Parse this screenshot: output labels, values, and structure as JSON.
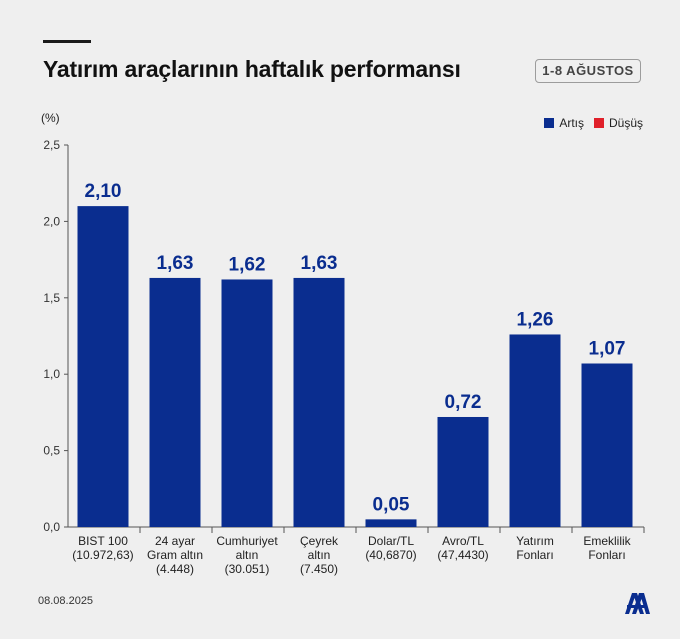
{
  "header": {
    "title": "Yatırım araçlarının haftalık performansı",
    "date_range": "1-8 AĞUSTOS"
  },
  "legend": {
    "items": [
      {
        "label": "Artış",
        "color": "#0a2d8f"
      },
      {
        "label": "Düşüş",
        "color": "#e0202a"
      }
    ]
  },
  "chart_data": {
    "type": "bar",
    "ylabel": "(%)",
    "ylim": [
      0,
      2.5
    ],
    "yticks": [
      "0,0",
      "0,5",
      "1,0",
      "1,5",
      "2,0",
      "2,5"
    ],
    "bar_color": "#0a2d8f",
    "categories": [
      {
        "lines": [
          "BIST 100",
          "(10.972,63)"
        ]
      },
      {
        "lines": [
          "24 ayar",
          "Gram altın",
          "(4.448)"
        ]
      },
      {
        "lines": [
          "Cumhuriyet",
          "altın",
          "(30.051)"
        ]
      },
      {
        "lines": [
          "Çeyrek",
          "altın",
          "(7.450)"
        ]
      },
      {
        "lines": [
          "Dolar/TL",
          "(40,6870)"
        ]
      },
      {
        "lines": [
          "Avro/TL",
          "(47,4430)"
        ]
      },
      {
        "lines": [
          "Yatırım",
          "Fonları"
        ]
      },
      {
        "lines": [
          "Emeklilik",
          "Fonları"
        ]
      }
    ],
    "values": [
      2.1,
      1.63,
      1.62,
      1.63,
      0.05,
      0.72,
      1.26,
      1.07
    ],
    "value_labels": [
      "2,10",
      "1,63",
      "1,62",
      "1,63",
      "0,05",
      "0,72",
      "1,26",
      "1,07"
    ]
  },
  "footer": {
    "date": "08.08.2025",
    "logo_icon": "aa-logo-icon"
  }
}
